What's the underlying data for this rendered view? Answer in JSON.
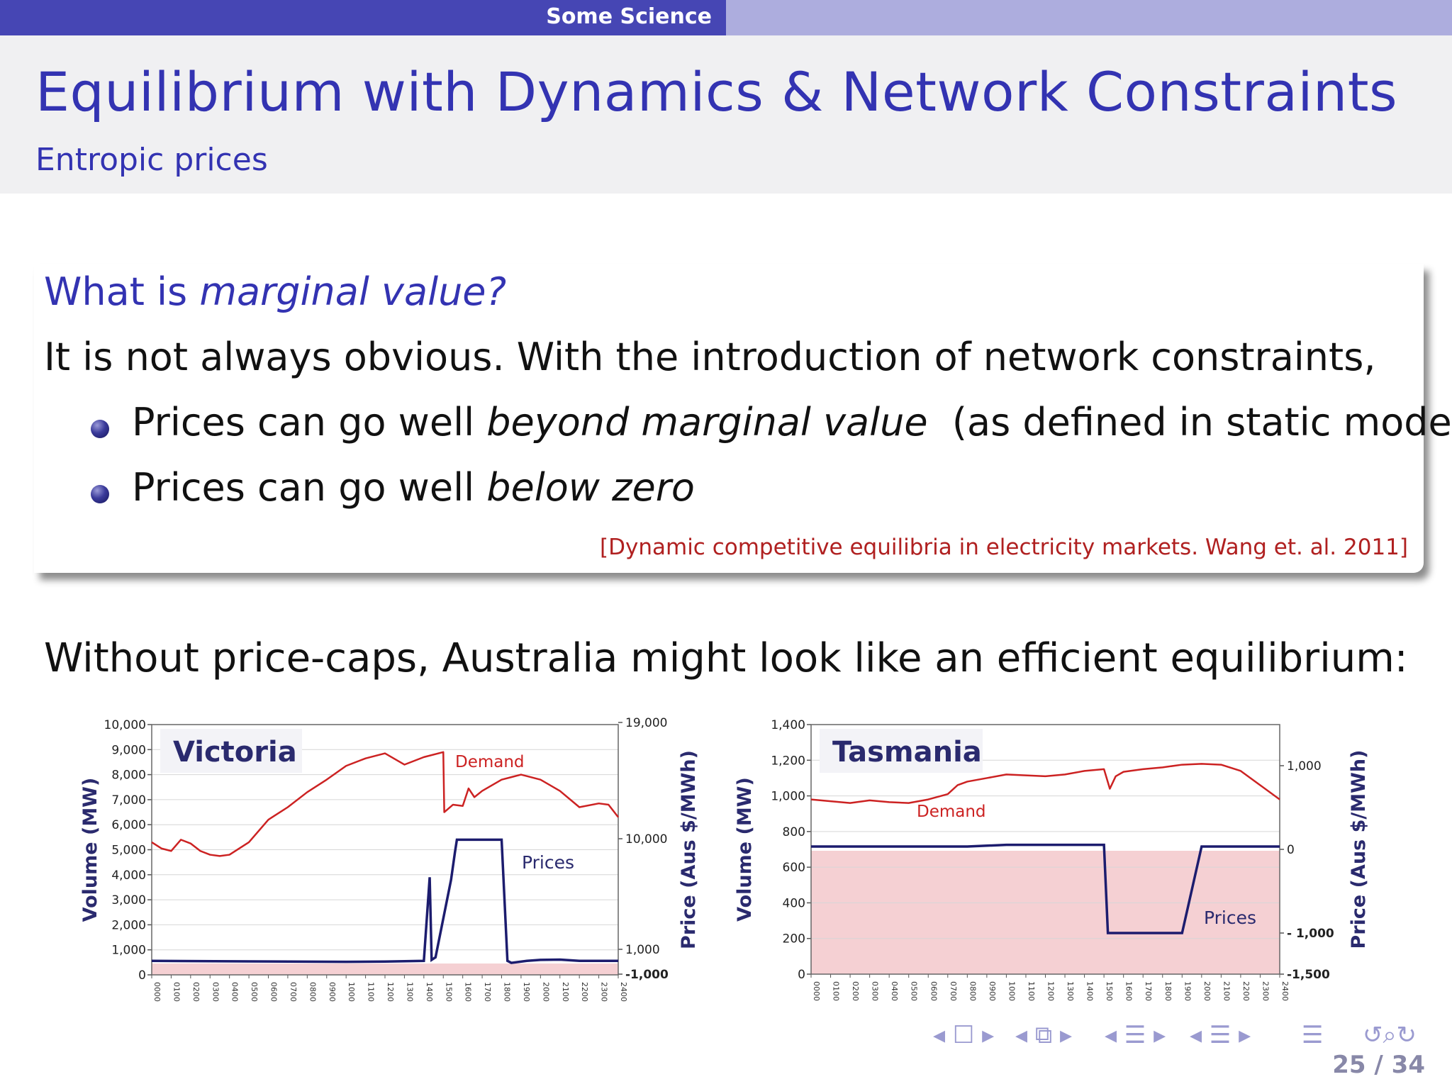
{
  "header": {
    "section": "Some Science"
  },
  "slide": {
    "title": "Equilibrium with Dynamics & Network Constraints",
    "subtitle": "Entropic prices"
  },
  "block": {
    "title_prefix": "What is ",
    "title_italic": "marginal value?",
    "intro": "It is not always obvious.  With the introduction of network constraints,",
    "bullets": [
      {
        "text": "Prices can go well ",
        "italic": "beyond marginal value",
        "suffix": "  (as defined in static model)"
      },
      {
        "text": "Prices can go well ",
        "italic": "below zero",
        "suffix": ""
      }
    ],
    "reference": "[Dynamic competitive equilibria in electricity markets.   Wang et. al. 2011]"
  },
  "body_text": "Without price-caps, Australia might look like an efficient equilibrium:",
  "colors": {
    "accent": "#3333b2",
    "demand": "#cc2222",
    "prices": "#1c1c6e",
    "negative_band": "#f5d0d3"
  },
  "chart_data": [
    {
      "type": "line",
      "title": "Victoria",
      "ylabel": "Volume (MW)",
      "y2label": "Price (Aus $/MWh)",
      "ylim": [
        0,
        10000
      ],
      "yticks": [
        "0",
        "1,000",
        "2,000",
        "3,000",
        "4,000",
        "5,000",
        "6,000",
        "7,000",
        "8,000",
        "9,000",
        "10,000"
      ],
      "y2ticks": [
        "19,000",
        "10,000",
        "1,000",
        "-1,000"
      ],
      "x": [
        "0000",
        "0100",
        "0200",
        "0300",
        "0400",
        "0500",
        "0600",
        "0700",
        "0800",
        "0900",
        "1000",
        "1100",
        "1200",
        "1300",
        "1400",
        "1500",
        "1600",
        "1700",
        "1800",
        "1900",
        "2000",
        "2100",
        "2200",
        "2300",
        "2400"
      ],
      "series": [
        {
          "name": "Demand",
          "x": [
            0,
            0.5,
            1,
            1.5,
            2,
            2.5,
            3,
            3.5,
            4,
            5,
            6,
            7,
            8,
            9,
            10,
            11,
            12,
            13,
            14,
            15,
            15.05,
            15.5,
            16,
            16.3,
            16.6,
            17,
            18,
            18.5,
            19,
            20,
            21,
            22,
            23,
            23.5,
            24
          ],
          "values": [
            5300,
            5050,
            4950,
            5400,
            5250,
            4950,
            4800,
            4750,
            4800,
            5300,
            6200,
            6700,
            7300,
            7800,
            8350,
            8650,
            8850,
            8400,
            8700,
            8900,
            6500,
            6800,
            6750,
            7450,
            7100,
            7350,
            7800,
            7900,
            8000,
            7800,
            7350,
            6700,
            6850,
            6800,
            6300
          ]
        },
        {
          "name": "Prices",
          "x": [
            0,
            5,
            10,
            12,
            14,
            14.3,
            14.4,
            14.6,
            15.4,
            15.6,
            15.7,
            16.8,
            17.6,
            18,
            18.3,
            18.5,
            19.3,
            20,
            21,
            22,
            23,
            24
          ],
          "values": [
            560,
            540,
            520,
            530,
            560,
            3900,
            600,
            700,
            3800,
            4900,
            5400,
            5400,
            5400,
            5400,
            560,
            480,
            560,
            600,
            610,
            560,
            560,
            560
          ]
        }
      ]
    },
    {
      "type": "line",
      "title": "Tasmania",
      "ylabel": "Volume (MW)",
      "y2label": "Price (Aus $/MWh)",
      "ylim": [
        0,
        1400
      ],
      "yticks": [
        "0",
        "200",
        "400",
        "600",
        "800",
        "1,000",
        "1,200",
        "1,400"
      ],
      "y2ticks": [
        "1,000",
        "0",
        "- 1,000",
        "-1,500"
      ],
      "x": [
        "0000",
        "0100",
        "0200",
        "0300",
        "0400",
        "0500",
        "0600",
        "0700",
        "0800",
        "0900",
        "1000",
        "1100",
        "1200",
        "1300",
        "1400",
        "1500",
        "1600",
        "1700",
        "1800",
        "1900",
        "2000",
        "2100",
        "2200",
        "2300",
        "2400"
      ],
      "series": [
        {
          "name": "Demand",
          "x": [
            0,
            1,
            2,
            3,
            4,
            5,
            6,
            7,
            7.5,
            8,
            9,
            10,
            11,
            12,
            13,
            14,
            15,
            15.3,
            15.6,
            16,
            17,
            18,
            19,
            20,
            21,
            22,
            23,
            24
          ],
          "values": [
            980,
            970,
            960,
            975,
            965,
            960,
            980,
            1010,
            1060,
            1080,
            1100,
            1120,
            1115,
            1110,
            1120,
            1140,
            1150,
            1040,
            1110,
            1135,
            1150,
            1160,
            1175,
            1180,
            1175,
            1140,
            1060,
            980
          ]
        },
        {
          "name": "Prices",
          "x": [
            0,
            4,
            8,
            10,
            12,
            14,
            15,
            15.2,
            15.5,
            16,
            17,
            18,
            19,
            20,
            21,
            22,
            23,
            24
          ],
          "values": [
            0,
            0,
            0,
            20,
            20,
            20,
            20,
            -1000,
            -1000,
            -1000,
            -1000,
            -1000,
            -1000,
            0,
            0,
            0,
            0,
            0
          ]
        }
      ]
    }
  ],
  "nav": {
    "page": "25 / 34"
  }
}
